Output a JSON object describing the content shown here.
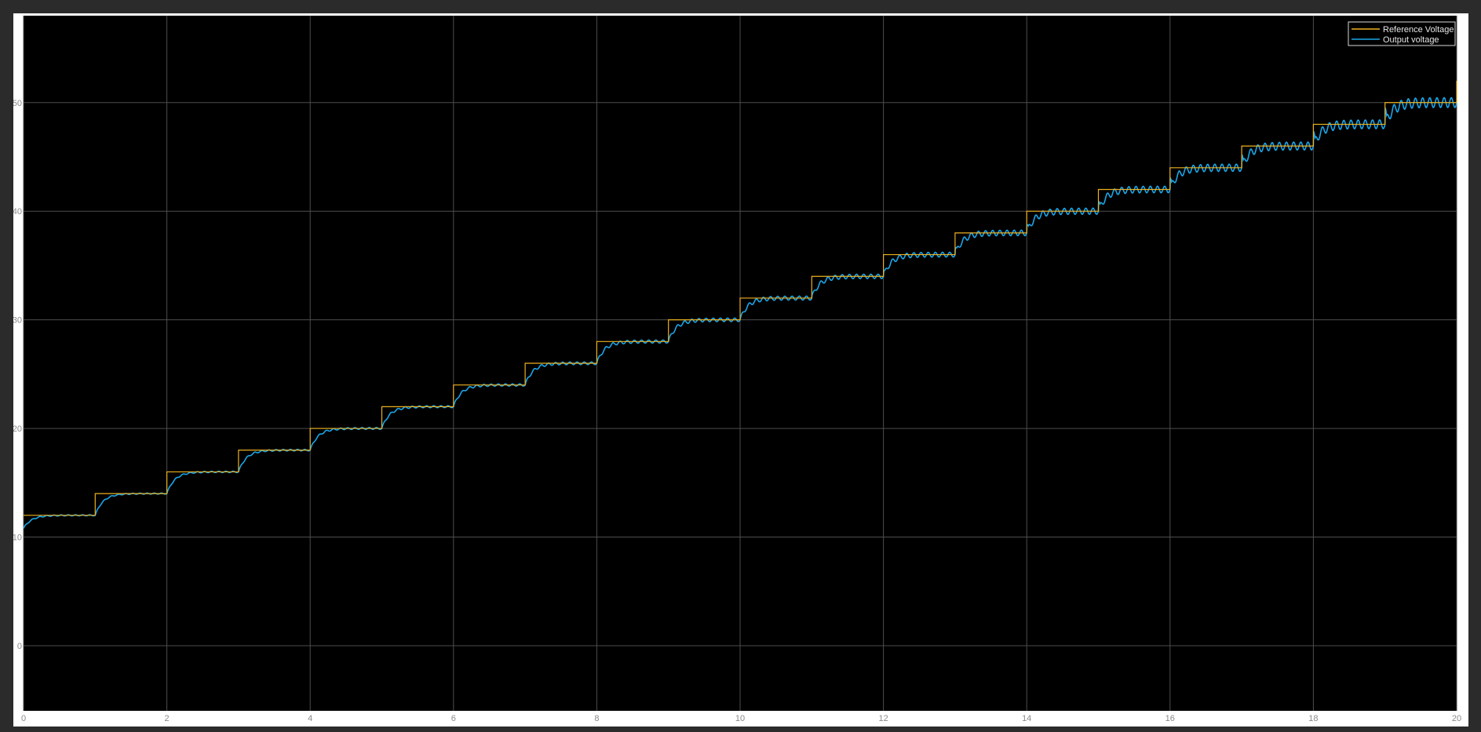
{
  "chart_data": {
    "type": "line",
    "title": "",
    "xlabel": "",
    "ylabel": "",
    "xlim": [
      0,
      20
    ],
    "ylim": [
      -6,
      58
    ],
    "xticks": [
      0,
      2,
      4,
      6,
      8,
      10,
      12,
      14,
      16,
      18,
      20
    ],
    "yticks": [
      0,
      10,
      20,
      30,
      40,
      50
    ],
    "grid": true,
    "legend_position": "top-right",
    "background": "#000000",
    "grid_color": "#4d4d4d",
    "series": [
      {
        "name": "Reference Voltage",
        "color": "#edb120",
        "style": "step",
        "x": [
          0,
          1,
          2,
          3,
          4,
          5,
          6,
          7,
          8,
          9,
          10,
          11,
          12,
          13,
          14,
          15,
          16,
          17,
          18,
          19,
          20
        ],
        "values": [
          12,
          14,
          16,
          18,
          20,
          22,
          24,
          26,
          28,
          30,
          32,
          34,
          36,
          38,
          40,
          42,
          44,
          46,
          48,
          50,
          52
        ]
      },
      {
        "name": "Output voltage",
        "color": "#1aa6e8",
        "style": "step-response",
        "x": [
          0,
          1,
          2,
          3,
          4,
          5,
          6,
          7,
          8,
          9,
          10,
          11,
          12,
          13,
          14,
          15,
          16,
          17,
          18,
          19
        ],
        "values": [
          12,
          14,
          16,
          18,
          20,
          22,
          24,
          26,
          28,
          30,
          32,
          34,
          36,
          38,
          40,
          42,
          44,
          46,
          48,
          50
        ],
        "initial_value": 10.8,
        "ripple": [
          0.05,
          0.05,
          0.06,
          0.07,
          0.08,
          0.09,
          0.1,
          0.12,
          0.14,
          0.16,
          0.18,
          0.2,
          0.22,
          0.25,
          0.28,
          0.3,
          0.33,
          0.36,
          0.4,
          0.45
        ]
      }
    ]
  }
}
